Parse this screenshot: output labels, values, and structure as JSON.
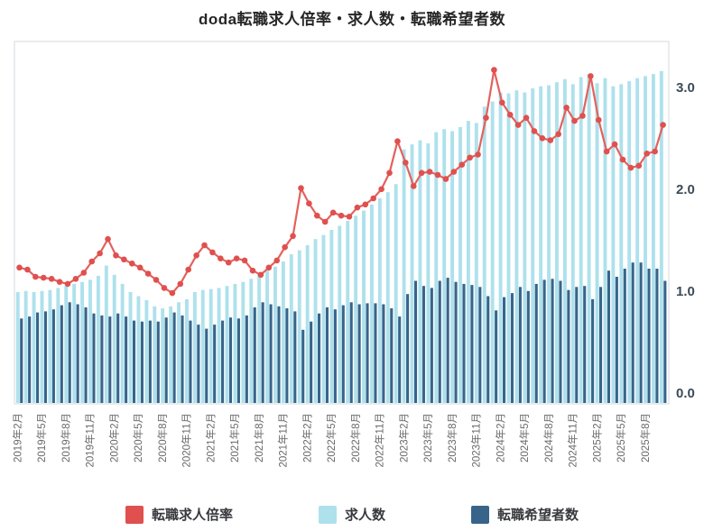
{
  "page": {
    "title": "doda転職求人倍率・求人数・転職希望者数"
  },
  "chart_data": {
    "type": "combo",
    "title": "doda転職求人倍率・求人数・転職希望者数",
    "months": [
      "2019年2月",
      "2019年3月",
      "2019年4月",
      "2019年5月",
      "2019年6月",
      "2019年7月",
      "2019年8月",
      "2019年9月",
      "2019年10月",
      "2019年11月",
      "2019年12月",
      "2020年1月",
      "2020年2月",
      "2020年3月",
      "2020年4月",
      "2020年5月",
      "2020年6月",
      "2020年7月",
      "2020年8月",
      "2020年9月",
      "2020年10月",
      "2020年11月",
      "2020年12月",
      "2021年1月",
      "2021年2月",
      "2021年3月",
      "2021年4月",
      "2021年5月",
      "2021年6月",
      "2021年7月",
      "2021年8月",
      "2021年9月",
      "2021年10月",
      "2021年11月",
      "2021年12月",
      "2022年1月",
      "2022年2月",
      "2022年3月",
      "2022年4月",
      "2022年5月",
      "2022年6月",
      "2022年7月",
      "2022年8月",
      "2022年9月",
      "2022年10月",
      "2022年11月",
      "2022年12月",
      "2023年1月",
      "2023年2月",
      "2023年3月",
      "2023年4月",
      "2023年5月",
      "2023年6月",
      "2023年7月",
      "2023年8月",
      "2023年9月",
      "2023年10月",
      "2023年11月",
      "2023年12月",
      "2024年1月",
      "2024年2月",
      "2024年3月",
      "2024年4月",
      "2024年5月",
      "2024年6月",
      "2024年7月",
      "2024年8月",
      "2024年9月",
      "2024年10月",
      "2024年11月",
      "2024年12月",
      "2025年1月",
      "2025年2月",
      "2025年3月",
      "2025年4月",
      "2025年5月",
      "2025年6月",
      "2025年7月",
      "2025年8月",
      "2025年9月",
      "2025年10月"
    ],
    "x_tick_interval": 3,
    "x_tick_labels": [
      "2019年2月",
      "2019年5月",
      "2019年8月",
      "2019年11月",
      "2020年2月",
      "2020年5月",
      "2020年8月",
      "2020年11月",
      "2021年2月",
      "2021年5月",
      "2021年8月",
      "2021年11月",
      "2022年2月",
      "2022年5月",
      "2022年8月",
      "2022年11月",
      "2023年2月",
      "2023年5月",
      "2023年8月",
      "2023年11月",
      "2024年2月",
      "2024年5月",
      "2024年8月",
      "2024年11月",
      "2025年2月",
      "2025年5月",
      "2025年8月"
    ],
    "y_axis": {
      "side": "right",
      "min": 0,
      "max": 3.4,
      "tick_labels": [
        "0.0",
        "1.0",
        "2.0",
        "3.0"
      ],
      "tick_values": [
        0,
        1,
        2,
        3
      ]
    },
    "grid": false,
    "legend_position": "bottom",
    "series": [
      {
        "name": "転職求人倍率",
        "kind": "line",
        "color": "#e4615d",
        "dot_color": "#df504e",
        "values": [
          1.32,
          1.3,
          1.23,
          1.22,
          1.21,
          1.18,
          1.16,
          1.21,
          1.27,
          1.38,
          1.46,
          1.6,
          1.44,
          1.4,
          1.36,
          1.32,
          1.26,
          1.2,
          1.12,
          1.07,
          1.16,
          1.3,
          1.44,
          1.54,
          1.47,
          1.41,
          1.37,
          1.41,
          1.39,
          1.29,
          1.25,
          1.32,
          1.39,
          1.52,
          1.63,
          2.1,
          1.95,
          1.83,
          1.77,
          1.86,
          1.83,
          1.82,
          1.91,
          1.94,
          2.0,
          2.09,
          2.25,
          2.56,
          2.35,
          2.12,
          2.25,
          2.26,
          2.23,
          2.19,
          2.26,
          2.33,
          2.4,
          2.43,
          2.79,
          3.26,
          2.94,
          2.82,
          2.72,
          2.79,
          2.66,
          2.59,
          2.57,
          2.63,
          2.89,
          2.76,
          2.81,
          3.2,
          2.77,
          2.46,
          2.53,
          2.38,
          2.3,
          2.32,
          2.44,
          2.46,
          2.72
        ]
      },
      {
        "name": "求人数",
        "kind": "bar",
        "color": "#aee1ec",
        "values": [
          1.08,
          1.09,
          1.08,
          1.09,
          1.1,
          1.12,
          1.14,
          1.16,
          1.18,
          1.2,
          1.24,
          1.34,
          1.25,
          1.16,
          1.08,
          1.04,
          1.0,
          0.94,
          0.92,
          0.94,
          0.98,
          1.01,
          1.08,
          1.1,
          1.11,
          1.12,
          1.14,
          1.16,
          1.18,
          1.21,
          1.25,
          1.29,
          1.33,
          1.38,
          1.45,
          1.49,
          1.54,
          1.6,
          1.64,
          1.69,
          1.73,
          1.78,
          1.83,
          1.88,
          1.94,
          2.0,
          2.06,
          2.14,
          2.48,
          2.53,
          2.57,
          2.54,
          2.65,
          2.68,
          2.66,
          2.7,
          2.76,
          2.74,
          2.9,
          2.95,
          3.04,
          3.03,
          3.06,
          3.04,
          3.08,
          3.1,
          3.11,
          3.14,
          3.17,
          3.12,
          3.19,
          3.22,
          3.13,
          3.18,
          3.1,
          3.12,
          3.15,
          3.18,
          3.2,
          3.22,
          3.25
        ]
      },
      {
        "name": "転職希望者数",
        "kind": "bar",
        "color": "#38648a",
        "values": [
          0.82,
          0.84,
          0.88,
          0.89,
          0.91,
          0.95,
          0.98,
          0.96,
          0.93,
          0.87,
          0.85,
          0.84,
          0.87,
          0.84,
          0.8,
          0.79,
          0.8,
          0.79,
          0.83,
          0.88,
          0.85,
          0.8,
          0.76,
          0.72,
          0.76,
          0.8,
          0.83,
          0.82,
          0.85,
          0.93,
          0.98,
          0.96,
          0.94,
          0.92,
          0.89,
          0.71,
          0.79,
          0.87,
          0.93,
          0.91,
          0.95,
          0.98,
          0.96,
          0.97,
          0.97,
          0.96,
          0.92,
          0.84,
          1.06,
          1.19,
          1.14,
          1.12,
          1.19,
          1.22,
          1.18,
          1.16,
          1.15,
          1.13,
          1.04,
          0.9,
          1.03,
          1.07,
          1.13,
          1.09,
          1.16,
          1.2,
          1.21,
          1.19,
          1.1,
          1.13,
          1.14,
          1.01,
          1.13,
          1.29,
          1.23,
          1.31,
          1.37,
          1.37,
          1.31,
          1.31,
          1.19
        ]
      }
    ],
    "frame_color": "#d5d9dc",
    "y_label_color": "#3c4b58",
    "x_label_color": "#6a6a6a"
  }
}
